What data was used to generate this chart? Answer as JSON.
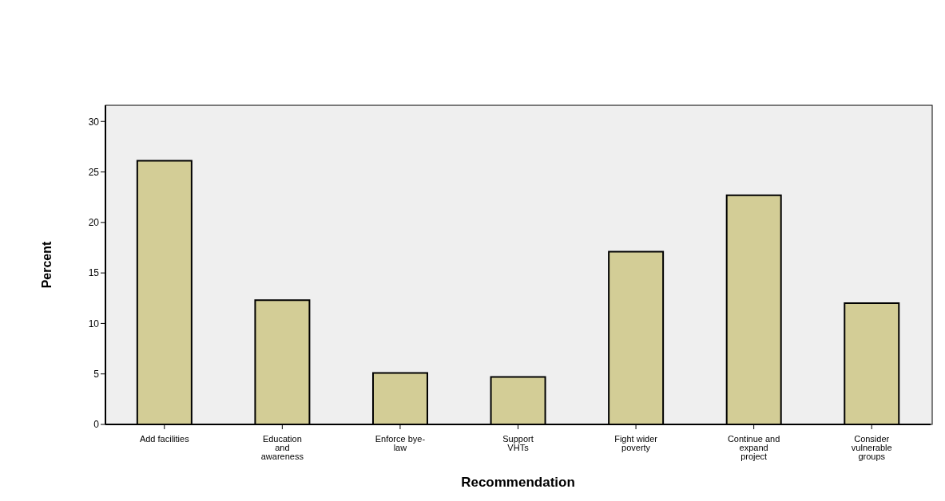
{
  "chart_data": {
    "type": "bar",
    "xlabel": "Recommendation",
    "ylabel": "Percent",
    "categories": [
      "Add facilities",
      "Education and awareness",
      "Enforce bye-law",
      "Support VHTs",
      "Fight wider poverty",
      "Continue and expand project",
      "Consider vulnerable groups"
    ],
    "values": [
      26.1,
      12.3,
      5.1,
      4.7,
      17.1,
      22.7,
      12.0
    ],
    "color": "#d3cd96",
    "ylim": [
      0,
      31.6
    ],
    "yticks": [
      0,
      5,
      10,
      15,
      20,
      25,
      30
    ],
    "grid": false,
    "legend": false
  }
}
